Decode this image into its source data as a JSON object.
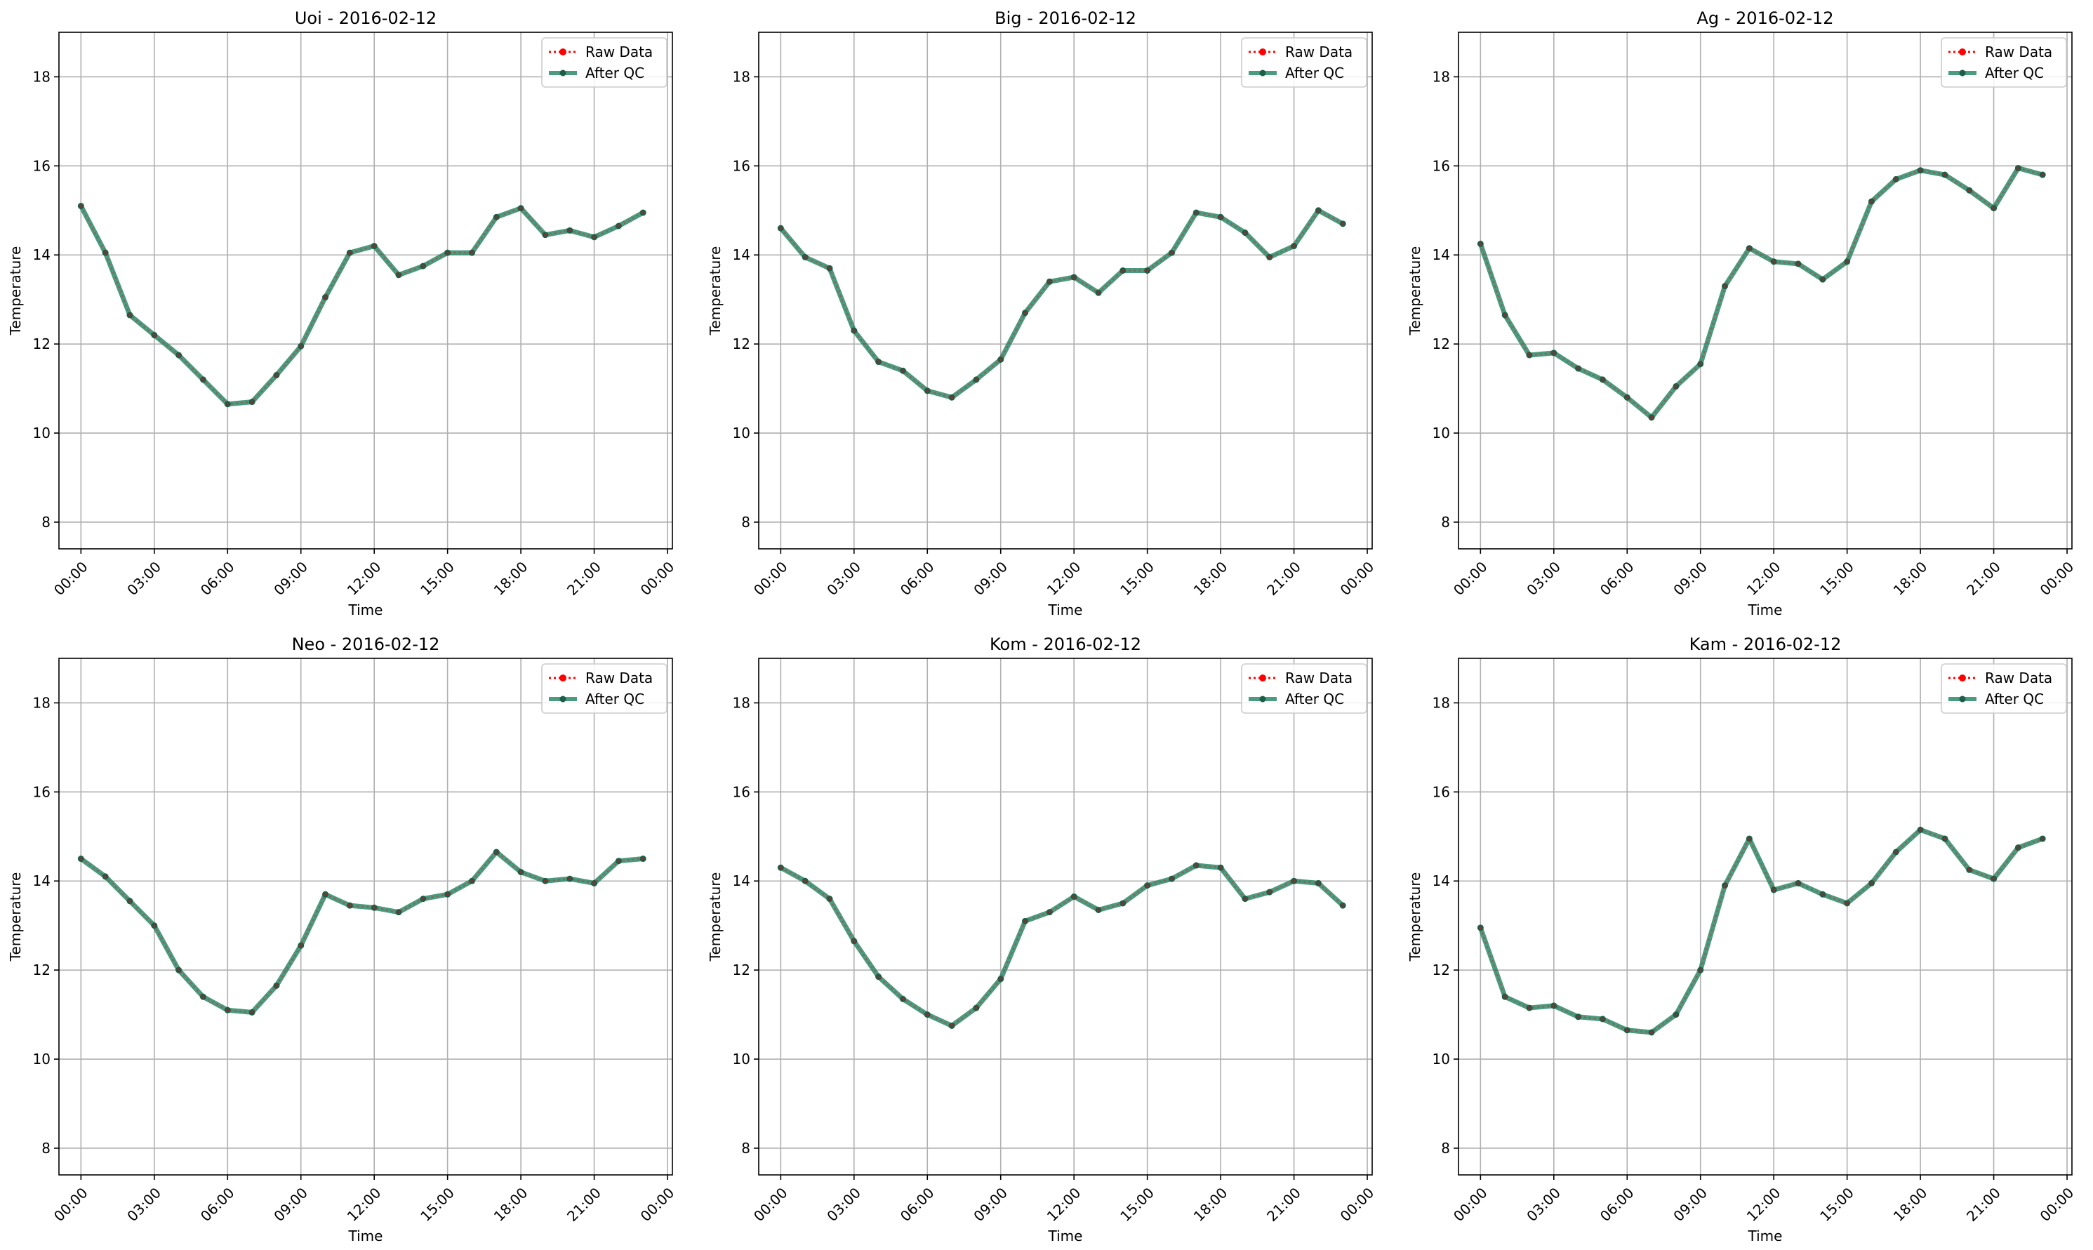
{
  "figure": {
    "legend_labels": [
      "Raw Data",
      "After QC"
    ],
    "colors": {
      "raw": "#ff0000",
      "qc": "#2a8a6a",
      "qc_marker": "#1d5e4a",
      "grid": "#b0b0b0",
      "axes": "#000000"
    }
  },
  "chart_data": [
    {
      "type": "line",
      "title": "Uoi - 2016-02-12",
      "xlabel": "Time",
      "ylabel": "Temperature",
      "x_tick_labels": [
        "00:00",
        "03:00",
        "06:00",
        "09:00",
        "12:00",
        "15:00",
        "18:00",
        "21:00",
        "00:00"
      ],
      "y_ticks": [
        8,
        10,
        12,
        14,
        16,
        18
      ],
      "ylim": [
        7.4,
        19.0
      ],
      "grid": true,
      "legend": "top-right",
      "series": [
        {
          "name": "Raw Data",
          "style": "dotted-red-markers",
          "values": [
            15.1,
            14.05,
            12.65,
            12.2,
            11.75,
            11.2,
            10.65,
            10.7,
            11.3,
            11.95,
            13.05,
            14.05,
            14.2,
            13.55,
            13.75,
            14.05,
            14.05,
            14.85,
            15.05,
            14.45,
            14.55,
            14.4,
            14.65,
            14.95
          ]
        },
        {
          "name": "After QC",
          "style": "solid-green-markers",
          "values": [
            15.1,
            14.05,
            12.65,
            12.2,
            11.75,
            11.2,
            10.65,
            10.7,
            11.3,
            11.95,
            13.05,
            14.05,
            14.2,
            13.55,
            13.75,
            14.05,
            14.05,
            14.85,
            15.05,
            14.45,
            14.55,
            14.4,
            14.65,
            14.95
          ]
        }
      ]
    },
    {
      "type": "line",
      "title": "Big - 2016-02-12",
      "xlabel": "Time",
      "ylabel": "Temperature",
      "x_tick_labels": [
        "00:00",
        "03:00",
        "06:00",
        "09:00",
        "12:00",
        "15:00",
        "18:00",
        "21:00",
        "00:00"
      ],
      "y_ticks": [
        8,
        10,
        12,
        14,
        16,
        18
      ],
      "ylim": [
        7.4,
        19.0
      ],
      "grid": true,
      "legend": "top-right",
      "series": [
        {
          "name": "Raw Data",
          "style": "dotted-red-markers",
          "values": [
            14.6,
            13.95,
            13.7,
            12.3,
            11.6,
            11.4,
            10.95,
            10.8,
            11.2,
            11.65,
            12.7,
            13.4,
            13.5,
            13.15,
            13.65,
            13.65,
            14.05,
            14.95,
            14.85,
            14.5,
            13.95,
            14.2,
            15.0,
            14.7
          ]
        },
        {
          "name": "After QC",
          "style": "solid-green-markers",
          "values": [
            14.6,
            13.95,
            13.7,
            12.3,
            11.6,
            11.4,
            10.95,
            10.8,
            11.2,
            11.65,
            12.7,
            13.4,
            13.5,
            13.15,
            13.65,
            13.65,
            14.05,
            14.95,
            14.85,
            14.5,
            13.95,
            14.2,
            15.0,
            14.7
          ]
        }
      ]
    },
    {
      "type": "line",
      "title": "Ag - 2016-02-12",
      "xlabel": "Time",
      "ylabel": "Temperature",
      "x_tick_labels": [
        "00:00",
        "03:00",
        "06:00",
        "09:00",
        "12:00",
        "15:00",
        "18:00",
        "21:00",
        "00:00"
      ],
      "y_ticks": [
        8,
        10,
        12,
        14,
        16,
        18
      ],
      "ylim": [
        7.4,
        19.0
      ],
      "grid": true,
      "legend": "top-right",
      "series": [
        {
          "name": "Raw Data",
          "style": "dotted-red-markers",
          "values": [
            14.25,
            12.65,
            11.75,
            11.8,
            11.45,
            11.2,
            10.8,
            10.35,
            11.05,
            11.55,
            13.3,
            14.15,
            13.85,
            13.8,
            13.45,
            13.85,
            15.2,
            15.7,
            15.9,
            15.8,
            15.45,
            15.05,
            15.95,
            15.8
          ]
        },
        {
          "name": "After QC",
          "style": "solid-green-markers",
          "values": [
            14.25,
            12.65,
            11.75,
            11.8,
            11.45,
            11.2,
            10.8,
            10.35,
            11.05,
            11.55,
            13.3,
            14.15,
            13.85,
            13.8,
            13.45,
            13.85,
            15.2,
            15.7,
            15.9,
            15.8,
            15.45,
            15.05,
            15.95,
            15.8
          ]
        }
      ]
    },
    {
      "type": "line",
      "title": "Neo - 2016-02-12",
      "xlabel": "Time",
      "ylabel": "Temperature",
      "x_tick_labels": [
        "00:00",
        "03:00",
        "06:00",
        "09:00",
        "12:00",
        "15:00",
        "18:00",
        "21:00",
        "00:00"
      ],
      "y_ticks": [
        8,
        10,
        12,
        14,
        16,
        18
      ],
      "ylim": [
        7.4,
        19.0
      ],
      "grid": true,
      "legend": "top-right",
      "series": [
        {
          "name": "Raw Data",
          "style": "dotted-red-markers",
          "values": [
            14.5,
            14.1,
            13.55,
            13.0,
            12.0,
            11.4,
            11.1,
            11.05,
            11.65,
            12.55,
            13.7,
            13.45,
            13.4,
            13.3,
            13.6,
            13.7,
            14.0,
            14.65,
            14.2,
            14.0,
            14.05,
            13.95,
            14.45,
            14.5
          ]
        },
        {
          "name": "After QC",
          "style": "solid-green-markers",
          "values": [
            14.5,
            14.1,
            13.55,
            13.0,
            12.0,
            11.4,
            11.1,
            11.05,
            11.65,
            12.55,
            13.7,
            13.45,
            13.4,
            13.3,
            13.6,
            13.7,
            14.0,
            14.65,
            14.2,
            14.0,
            14.05,
            13.95,
            14.45,
            14.5
          ]
        }
      ]
    },
    {
      "type": "line",
      "title": "Kom - 2016-02-12",
      "xlabel": "Time",
      "ylabel": "Temperature",
      "x_tick_labels": [
        "00:00",
        "03:00",
        "06:00",
        "09:00",
        "12:00",
        "15:00",
        "18:00",
        "21:00",
        "00:00"
      ],
      "y_ticks": [
        8,
        10,
        12,
        14,
        16,
        18
      ],
      "ylim": [
        7.4,
        19.0
      ],
      "grid": true,
      "legend": "top-right",
      "series": [
        {
          "name": "Raw Data",
          "style": "dotted-red-markers",
          "values": [
            14.3,
            14.0,
            13.6,
            12.65,
            11.85,
            11.35,
            11.0,
            10.75,
            11.15,
            11.8,
            13.1,
            13.3,
            13.65,
            13.35,
            13.5,
            13.9,
            14.05,
            14.35,
            14.3,
            13.6,
            13.75,
            14.0,
            13.95,
            13.45
          ]
        },
        {
          "name": "After QC",
          "style": "solid-green-markers",
          "values": [
            14.3,
            14.0,
            13.6,
            12.65,
            11.85,
            11.35,
            11.0,
            10.75,
            11.15,
            11.8,
            13.1,
            13.3,
            13.65,
            13.35,
            13.5,
            13.9,
            14.05,
            14.35,
            14.3,
            13.6,
            13.75,
            14.0,
            13.95,
            13.45
          ]
        }
      ]
    },
    {
      "type": "line",
      "title": "Kam - 2016-02-12",
      "xlabel": "Time",
      "ylabel": "Temperature",
      "x_tick_labels": [
        "00:00",
        "03:00",
        "06:00",
        "09:00",
        "12:00",
        "15:00",
        "18:00",
        "21:00",
        "00:00"
      ],
      "y_ticks": [
        8,
        10,
        12,
        14,
        16,
        18
      ],
      "ylim": [
        7.4,
        19.0
      ],
      "grid": true,
      "legend": "top-right",
      "series": [
        {
          "name": "Raw Data",
          "style": "dotted-red-markers",
          "values": [
            12.95,
            11.4,
            11.15,
            11.2,
            10.95,
            10.9,
            10.65,
            10.6,
            11.0,
            12.0,
            13.9,
            14.95,
            13.8,
            13.95,
            13.7,
            13.5,
            13.95,
            14.65,
            15.15,
            14.95,
            14.25,
            14.05,
            14.75,
            14.95
          ]
        },
        {
          "name": "After QC",
          "style": "solid-green-markers",
          "values": [
            12.95,
            11.4,
            11.15,
            11.2,
            10.95,
            10.9,
            10.65,
            10.6,
            11.0,
            12.0,
            13.9,
            14.95,
            13.8,
            13.95,
            13.7,
            13.5,
            13.95,
            14.65,
            15.15,
            14.95,
            14.25,
            14.05,
            14.75,
            14.95
          ]
        }
      ]
    }
  ]
}
